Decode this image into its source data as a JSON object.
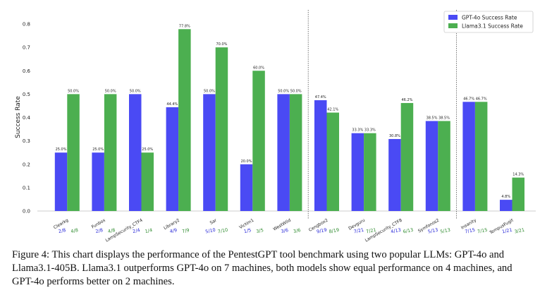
{
  "chart_data": {
    "type": "bar",
    "ylabel": "Success Rate",
    "ylim": [
      0,
      0.8
    ],
    "yticks": [
      0.0,
      0.1,
      0.2,
      0.3,
      0.4,
      0.5,
      0.6,
      0.7,
      0.8
    ],
    "grid": false,
    "legend_position": "top-right",
    "group_separators_after": [
      6,
      10
    ],
    "categories": [
      "Clearkg",
      "Funbox",
      "LampSecurity_CTF4",
      "Library2",
      "Sar",
      "Victim1",
      "WestWild",
      "Cengbox2",
      "Devguru",
      "LampSecurity_CTF8",
      "Symfonos2",
      "Insanity",
      "TempusFugit"
    ],
    "series": [
      {
        "name": "GPT-4o Success Rate",
        "color": "#4a4af4",
        "values": [
          0.25,
          0.25,
          0.5,
          0.444,
          0.5,
          0.2,
          0.5,
          0.474,
          0.333,
          0.308,
          0.385,
          0.467,
          0.048
        ],
        "labels": [
          "25.0%",
          "25.0%",
          "50.0%",
          "44.4%",
          "50.0%",
          "20.0%",
          "50.0%",
          "47.4%",
          "33.3%",
          "30.8%",
          "38.5%",
          "46.7%",
          "4.8%"
        ],
        "fractions": [
          "2/8",
          "2/8",
          "2/4",
          "4/9",
          "5/10",
          "1/5",
          "3/6",
          "9/19",
          "7/21",
          "4/13",
          "5/13",
          "7/15",
          "1/21"
        ]
      },
      {
        "name": "Llama3.1 Success Rate",
        "color": "#4caf50",
        "values": [
          0.5,
          0.5,
          0.25,
          0.778,
          0.7,
          0.6,
          0.5,
          0.421,
          0.333,
          0.462,
          0.385,
          0.467,
          0.143
        ],
        "labels": [
          "50.0%",
          "50.0%",
          "25.0%",
          "77.8%",
          "70.0%",
          "60.0%",
          "50.0%",
          "42.1%",
          "33.3%",
          "46.2%",
          "38.5%",
          "46.7%",
          "14.3%"
        ],
        "fractions": [
          "4/8",
          "4/8",
          "1/4",
          "7/9",
          "7/10",
          "3/5",
          "3/6",
          "8/19",
          "7/21",
          "6/13",
          "5/13",
          "7/15",
          "3/21"
        ]
      }
    ]
  },
  "caption": "Figure 4: This chart displays the performance of the PentestGPT tool benchmark using two popular LLMs: GPT-4o and Llama3.1-405B. Llama3.1 outperforms GPT-4o on 7 machines, both models show equal performance on 4 machines, and GPT-4o performs better on 2 machines."
}
